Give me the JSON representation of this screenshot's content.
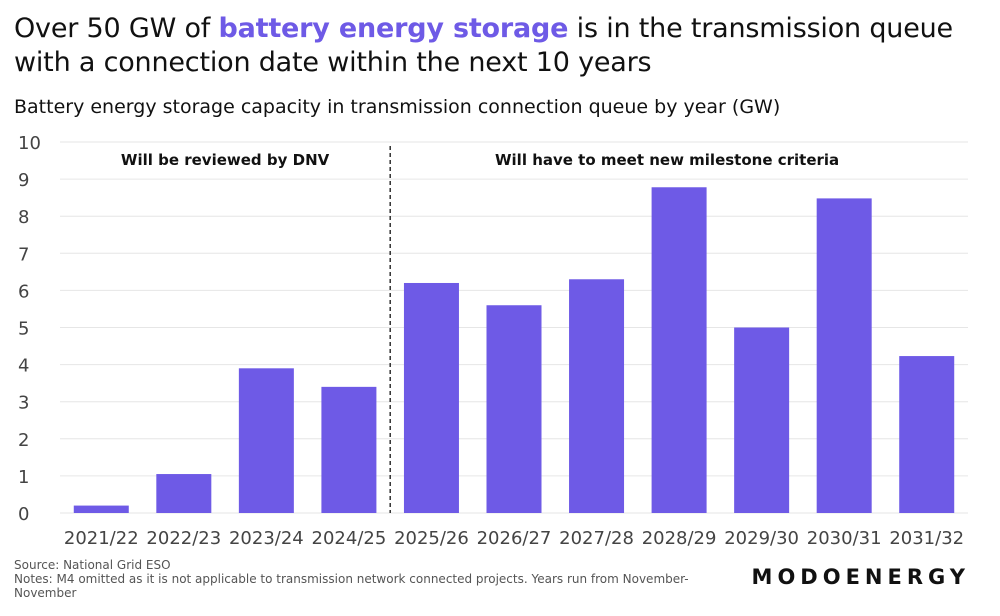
{
  "title": {
    "prefix": "Over 50 GW of ",
    "highlight": "battery energy storage",
    "suffix": " is in the transmission queue with a connection date within the next 10 years"
  },
  "subtitle": "Battery energy storage capacity in transmission connection queue by year (GW)",
  "colors": {
    "bar": "#6e5ae6",
    "highlight": "#6e5ae6",
    "grid": "#e6e6e6"
  },
  "chart_data": {
    "type": "bar",
    "categories": [
      "2021/22",
      "2022/23",
      "2023/24",
      "2024/25",
      "2025/26",
      "2026/27",
      "2027/28",
      "2028/29",
      "2029/30",
      "2030/31",
      "2031/32"
    ],
    "values": [
      0.2,
      1.05,
      3.9,
      3.4,
      6.2,
      5.6,
      6.3,
      8.78,
      5.0,
      8.48,
      4.23
    ],
    "ylim": [
      0,
      10
    ],
    "yticks": [
      "0",
      "1",
      "2",
      "3",
      "4",
      "5",
      "6",
      "7",
      "8",
      "9",
      "10"
    ],
    "xlabel": "",
    "ylabel": "",
    "grid": true,
    "annotations": [
      {
        "text": "Will be reviewed by DNV"
      },
      {
        "text": "Will have to meet new milestone criteria"
      }
    ],
    "divider_after_category": "2024/25"
  },
  "footer": {
    "source": "Source: National Grid ESO",
    "notes": "Notes: M4 omitted as it is not applicable to transmission network connected projects. Years run from November-November"
  },
  "logo": "MODOENERGY"
}
